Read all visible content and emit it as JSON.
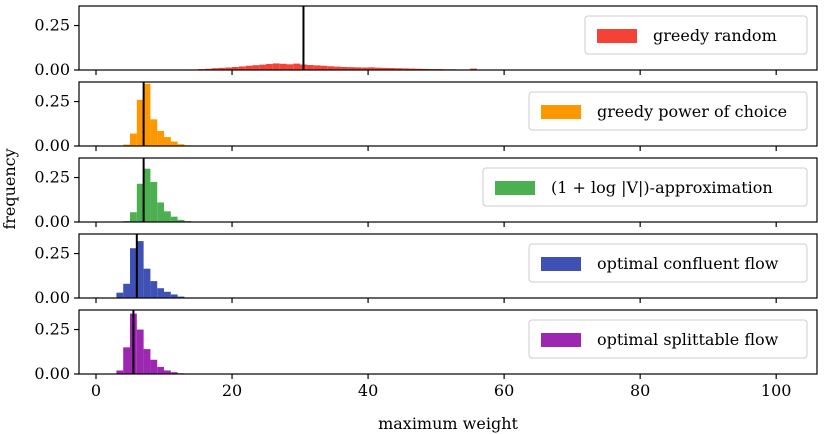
{
  "chart_data": {
    "type": "histogram",
    "xlabel": "maximum weight",
    "ylabel": "frequency",
    "xlim": [
      -2.5,
      106
    ],
    "ylim": [
      0,
      0.36
    ],
    "x_ticks": [
      0,
      20,
      40,
      60,
      80,
      100
    ],
    "y_ticks": [
      0.0,
      0.25
    ],
    "y_tick_labels": [
      "0.00",
      "0.25"
    ],
    "bin_width": 1,
    "legend_position": "right",
    "panels": [
      {
        "name": "greedy random",
        "color": "#f44336",
        "vline": 30.5,
        "bins": [
          [
            14,
            0.003
          ],
          [
            15,
            0.005
          ],
          [
            16,
            0.007
          ],
          [
            17,
            0.01
          ],
          [
            18,
            0.012
          ],
          [
            19,
            0.014
          ],
          [
            20,
            0.017
          ],
          [
            21,
            0.02
          ],
          [
            22,
            0.024
          ],
          [
            23,
            0.027
          ],
          [
            24,
            0.03
          ],
          [
            25,
            0.034
          ],
          [
            26,
            0.037
          ],
          [
            27,
            0.035
          ],
          [
            28,
            0.032
          ],
          [
            29,
            0.036
          ],
          [
            30,
            0.031
          ],
          [
            31,
            0.028
          ],
          [
            32,
            0.026
          ],
          [
            33,
            0.024
          ],
          [
            34,
            0.021
          ],
          [
            35,
            0.019
          ],
          [
            36,
            0.017
          ],
          [
            37,
            0.016
          ],
          [
            38,
            0.015
          ],
          [
            39,
            0.014
          ],
          [
            40,
            0.015
          ],
          [
            41,
            0.013
          ],
          [
            42,
            0.012
          ],
          [
            43,
            0.011
          ],
          [
            44,
            0.01
          ],
          [
            45,
            0.009
          ],
          [
            46,
            0.008
          ],
          [
            47,
            0.007
          ],
          [
            48,
            0.006
          ],
          [
            49,
            0.005
          ],
          [
            50,
            0.005
          ],
          [
            51,
            0.004
          ],
          [
            52,
            0.004
          ],
          [
            53,
            0.003
          ],
          [
            54,
            0.003
          ],
          [
            55,
            0.008
          ],
          [
            56,
            0.002
          ],
          [
            57,
            0.002
          ]
        ]
      },
      {
        "name": "greedy power of choice",
        "color": "#ff9800",
        "vline": 7,
        "bins": [
          [
            4,
            0.008
          ],
          [
            5,
            0.07
          ],
          [
            6,
            0.26
          ],
          [
            7,
            0.35
          ],
          [
            8,
            0.15
          ],
          [
            9,
            0.085
          ],
          [
            10,
            0.05
          ],
          [
            11,
            0.025
          ],
          [
            12,
            0.01
          ],
          [
            13,
            0.004
          ]
        ]
      },
      {
        "name": "(1 + log |V|)-approximation",
        "color": "#4caf50",
        "vline": 7,
        "bins": [
          [
            4,
            0.005
          ],
          [
            5,
            0.055
          ],
          [
            6,
            0.215
          ],
          [
            7,
            0.3
          ],
          [
            8,
            0.225
          ],
          [
            9,
            0.11
          ],
          [
            10,
            0.06
          ],
          [
            11,
            0.03
          ],
          [
            12,
            0.012
          ],
          [
            13,
            0.005
          ]
        ]
      },
      {
        "name": "optimal confluent flow",
        "color": "#3f51b5",
        "vline": 6,
        "bins": [
          [
            3,
            0.03
          ],
          [
            4,
            0.08
          ],
          [
            5,
            0.28
          ],
          [
            6,
            0.32
          ],
          [
            7,
            0.165
          ],
          [
            8,
            0.095
          ],
          [
            9,
            0.055
          ],
          [
            10,
            0.035
          ],
          [
            11,
            0.02
          ],
          [
            12,
            0.008
          ],
          [
            13,
            0.003
          ]
        ]
      },
      {
        "name": "optimal splittable flow",
        "color": "#9c27b0",
        "vline": 5.5,
        "bins": [
          [
            3,
            0.02
          ],
          [
            4,
            0.15
          ],
          [
            5,
            0.34
          ],
          [
            6,
            0.25
          ],
          [
            7,
            0.14
          ],
          [
            8,
            0.08
          ],
          [
            9,
            0.04
          ],
          [
            10,
            0.02
          ],
          [
            11,
            0.01
          ],
          [
            12,
            0.004
          ]
        ]
      }
    ]
  }
}
